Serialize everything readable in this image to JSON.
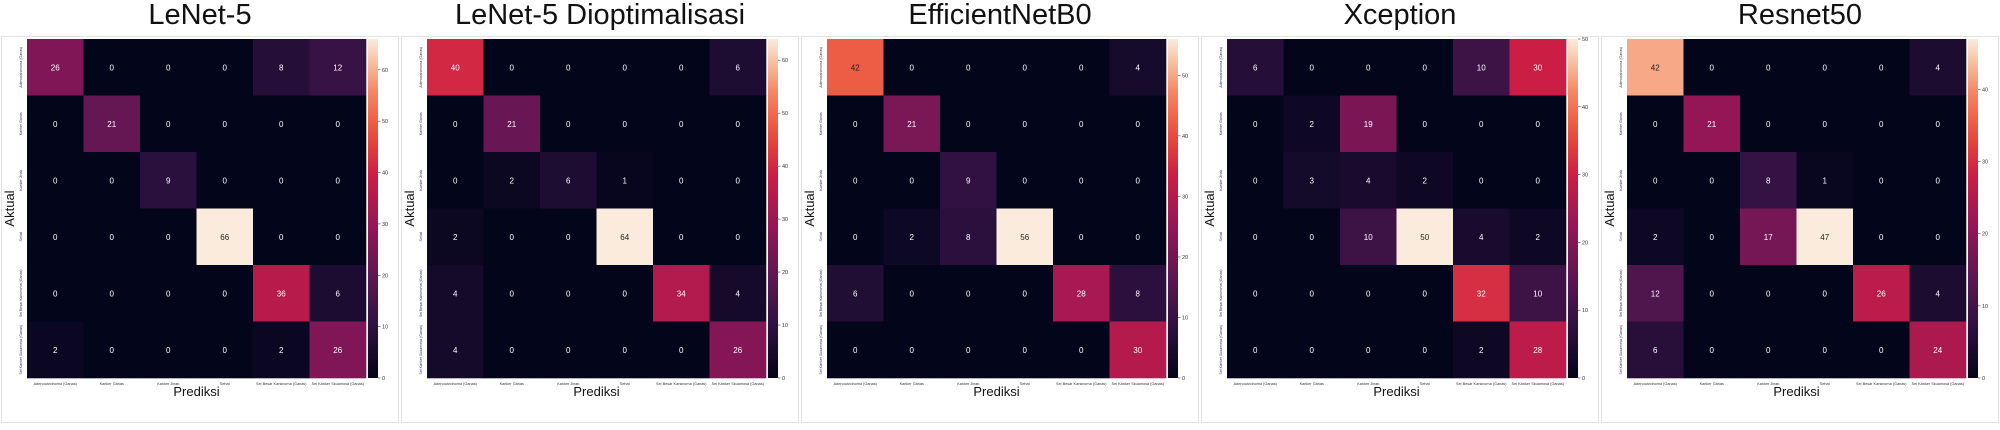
{
  "figure": {
    "xlabel": "Prediksi",
    "ylabel": "Aktual"
  },
  "chart_data": [
    {
      "type": "heatmap",
      "title": "LeNet-5",
      "xlabel": "Prediksi",
      "ylabel": "Aktual",
      "x_categories": [
        "Adenocarcinoma (Ganas)",
        "Kanker Ganas",
        "Kanker Jinak",
        "Sehat",
        "Sel Besar Karsinoma (Ganas)",
        "Sel Kanker Skuamosa (Ganas)"
      ],
      "y_categories": [
        "Adenocarcinoma (Ganas)",
        "Kanker Ganas",
        "Kanker Jinak",
        "Sehat",
        "Sel Besar Karsinoma (Ganas)",
        "Sel Kanker Skuamosa (Ganas)"
      ],
      "values": [
        [
          26,
          0,
          0,
          0,
          8,
          12
        ],
        [
          0,
          21,
          0,
          0,
          0,
          0
        ],
        [
          0,
          0,
          9,
          0,
          0,
          0
        ],
        [
          0,
          0,
          0,
          66,
          0,
          0
        ],
        [
          0,
          0,
          0,
          0,
          36,
          6
        ],
        [
          2,
          0,
          0,
          0,
          2,
          26
        ]
      ],
      "colorbar_ticks": [
        0,
        10,
        20,
        30,
        40,
        50,
        60
      ],
      "vmax": 66
    },
    {
      "type": "heatmap",
      "title": "LeNet-5 Dioptimalisasi",
      "xlabel": "Prediksi",
      "ylabel": "Aktual",
      "x_categories": [
        "Adenocarcinoma (Ganas)",
        "Kanker Ganas",
        "Kanker Jinak",
        "Sehat",
        "Sel Besar Karsinoma (Ganas)",
        "Sel Kanker Skuamosa (Ganas)"
      ],
      "y_categories": [
        "Adenocarcinoma (Ganas)",
        "Kanker Ganas",
        "Kanker Jinak",
        "Sehat",
        "Sel Besar Karsinoma (Ganas)",
        "Sel Kanker Skuamosa (Ganas)"
      ],
      "values": [
        [
          40,
          0,
          0,
          0,
          0,
          6
        ],
        [
          0,
          21,
          0,
          0,
          0,
          0
        ],
        [
          0,
          2,
          6,
          1,
          0,
          0
        ],
        [
          2,
          0,
          0,
          64,
          0,
          0
        ],
        [
          4,
          0,
          0,
          0,
          34,
          4
        ],
        [
          4,
          0,
          0,
          0,
          0,
          26
        ]
      ],
      "colorbar_ticks": [
        0,
        10,
        20,
        30,
        40,
        50,
        60
      ],
      "vmax": 64
    },
    {
      "type": "heatmap",
      "title": "EfficientNetB0",
      "xlabel": "Prediksi",
      "ylabel": "Aktual",
      "x_categories": [
        "Adenocarcinoma (Ganas)",
        "Kanker Ganas",
        "Kanker Jinak",
        "Sehat",
        "Sel Besar Karsinoma (Ganas)",
        "Sel Kanker Skuamosa (Ganas)"
      ],
      "y_categories": [
        "Adenocarcinoma (Ganas)",
        "Kanker Ganas",
        "Kanker Jinak",
        "Sehat",
        "Sel Besar Karsinoma (Ganas)",
        "Sel Kanker Skuamosa (Ganas)"
      ],
      "values": [
        [
          42,
          0,
          0,
          0,
          0,
          4
        ],
        [
          0,
          21,
          0,
          0,
          0,
          0
        ],
        [
          0,
          0,
          9,
          0,
          0,
          0
        ],
        [
          0,
          2,
          8,
          56,
          0,
          0
        ],
        [
          6,
          0,
          0,
          0,
          28,
          8
        ],
        [
          0,
          0,
          0,
          0,
          0,
          30
        ]
      ],
      "colorbar_ticks": [
        0,
        10,
        20,
        30,
        40,
        50
      ],
      "vmax": 56
    },
    {
      "type": "heatmap",
      "title": "Xception",
      "xlabel": "Prediksi",
      "ylabel": "Aktual",
      "x_categories": [
        "Adenocarcinoma (Ganas)",
        "Kanker Ganas",
        "Kanker Jinak",
        "Sehat",
        "Sel Besar Karsinoma (Ganas)",
        "Sel Kanker Skuamosa (Ganas)"
      ],
      "y_categories": [
        "Adenocarcinoma (Ganas)",
        "Kanker Ganas",
        "Kanker Jinak",
        "Sehat",
        "Sel Besar Karsinoma (Ganas)",
        "Sel Kanker Skuamosa (Ganas)"
      ],
      "values": [
        [
          6,
          0,
          0,
          0,
          10,
          30
        ],
        [
          0,
          2,
          19,
          0,
          0,
          0
        ],
        [
          0,
          3,
          4,
          2,
          0,
          0
        ],
        [
          0,
          0,
          10,
          50,
          4,
          2
        ],
        [
          0,
          0,
          0,
          0,
          32,
          10
        ],
        [
          0,
          0,
          0,
          0,
          2,
          28
        ]
      ],
      "colorbar_ticks": [
        0,
        10,
        20,
        30,
        40,
        50
      ],
      "vmax": 50
    },
    {
      "type": "heatmap",
      "title": "Resnet50",
      "xlabel": "Prediksi",
      "ylabel": "Aktual",
      "x_categories": [
        "Adenocarcinoma (Ganas)",
        "Kanker Ganas",
        "Kanker Jinak",
        "Sehat",
        "Sel Besar Karsinoma (Ganas)",
        "Sel Kanker Skuamosa (Ganas)"
      ],
      "y_categories": [
        "Adenocarcinoma (Ganas)",
        "Kanker Ganas",
        "Kanker Jinak",
        "Sehat",
        "Sel Besar Karsinoma (Ganas)",
        "Sel Kanker Skuamosa (Ganas)"
      ],
      "values": [
        [
          42,
          0,
          0,
          0,
          0,
          4
        ],
        [
          0,
          21,
          0,
          0,
          0,
          0
        ],
        [
          0,
          0,
          8,
          1,
          0,
          0
        ],
        [
          2,
          0,
          17,
          47,
          0,
          0
        ],
        [
          12,
          0,
          0,
          0,
          26,
          4
        ],
        [
          6,
          0,
          0,
          0,
          0,
          24
        ]
      ],
      "colorbar_ticks": [
        0,
        10,
        20,
        30,
        40
      ],
      "vmax": 47
    }
  ]
}
